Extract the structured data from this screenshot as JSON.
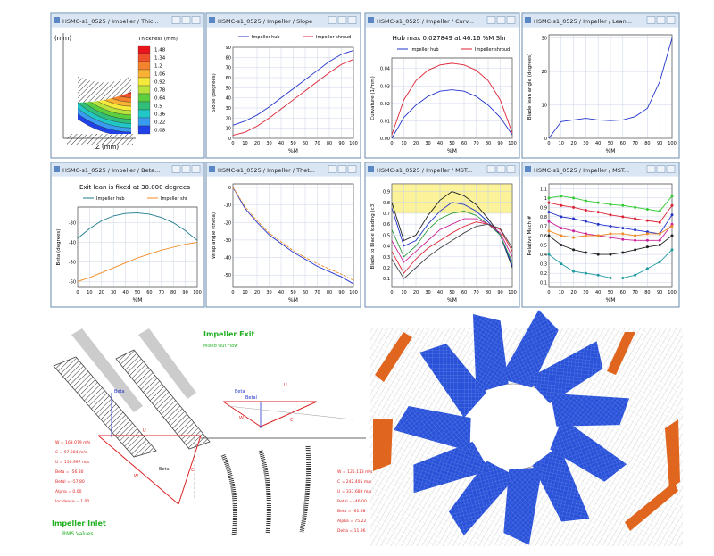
{
  "chart_data": [
    {
      "type": "contour",
      "window_title": "HSMC-s1_0525 / Impeller / Thic...",
      "title": "Thickness  (mm)",
      "y_label": "(mm)",
      "x_label": "Z (mm)",
      "levels": [
        1.48,
        1.34,
        1.2,
        1.06,
        0.92,
        0.78,
        0.64,
        0.5,
        0.36,
        0.22,
        0.08
      ],
      "colors": [
        "#e8141c",
        "#f0502a",
        "#f5822c",
        "#f9b233",
        "#f5e93a",
        "#b9e23c",
        "#5ccf3e",
        "#2fbf7a",
        "#21c6c6",
        "#3a9cf0",
        "#2040e8"
      ]
    },
    {
      "type": "line",
      "window_title": "HSMC-s1_0525 / Impeller / Slope",
      "x_label": "%M",
      "y_label": "Slope (degrees)",
      "x": [
        0,
        10,
        20,
        30,
        40,
        50,
        60,
        70,
        80,
        90,
        100
      ],
      "xlim": [
        0,
        100
      ],
      "xticks": [
        0,
        10,
        20,
        30,
        40,
        50,
        60,
        70,
        80,
        90,
        100
      ],
      "ylim": [
        0,
        90
      ],
      "yticks": [
        0,
        10,
        20,
        30,
        40,
        50,
        60,
        70,
        80,
        90
      ],
      "grid": true,
      "series": [
        {
          "name": "Impeller hub",
          "color": "#2233cc",
          "values": [
            13,
            17,
            23,
            31,
            40,
            49,
            58,
            67,
            76,
            83,
            87
          ]
        },
        {
          "name": "Impeller shroud",
          "color": "#dd2233",
          "values": [
            3,
            6,
            12,
            20,
            29,
            38,
            47,
            56,
            65,
            73,
            78
          ]
        }
      ]
    },
    {
      "type": "line",
      "window_title": "HSMC-s1_0525 / Impeller / Curv...",
      "title": "Hub max 0.027849 at 46.16 %M   Shr",
      "x_label": "%M",
      "y_label": "Curvature (1/mm)",
      "x": [
        0,
        10,
        20,
        30,
        40,
        50,
        60,
        70,
        80,
        90,
        100
      ],
      "xlim": [
        0,
        100
      ],
      "xticks": [
        0,
        10,
        20,
        30,
        40,
        50,
        60,
        70,
        80,
        90,
        100
      ],
      "ylim": [
        0,
        0.046
      ],
      "yticks": [
        {
          "value": 0,
          "label": "0.00"
        },
        0.01,
        0.02,
        0.03,
        0.04
      ],
      "grid": true,
      "series": [
        {
          "name": "Impeller hub",
          "color": "#2233cc",
          "values": [
            0,
            0.012,
            0.019,
            0.024,
            0.027,
            0.0278,
            0.027,
            0.024,
            0.019,
            0.012,
            0.002
          ]
        },
        {
          "name": "Impeller shroud",
          "color": "#dd2233",
          "values": [
            0.002,
            0.022,
            0.033,
            0.039,
            0.042,
            0.043,
            0.042,
            0.039,
            0.033,
            0.022,
            0.003
          ]
        }
      ]
    },
    {
      "type": "line",
      "window_title": "HSMC-s1_0525 / Impeller / Lean...",
      "x_label": "%M",
      "y_label": "Blade lean angle (degrees)",
      "x": [
        0,
        10,
        20,
        30,
        40,
        50,
        60,
        70,
        80,
        90,
        100
      ],
      "xlim": [
        0,
        100
      ],
      "xticks": [
        0,
        10,
        20,
        30,
        40,
        50,
        60,
        70,
        80,
        90,
        100
      ],
      "ylim": [
        0,
        31
      ],
      "yticks": [
        0,
        10,
        20,
        30
      ],
      "grid": true,
      "series": [
        {
          "color": "#2233cc",
          "values": [
            0,
            5,
            5.5,
            6,
            5.5,
            5.3,
            5.5,
            6.5,
            9,
            17,
            30
          ]
        }
      ]
    },
    {
      "type": "line",
      "window_title": "HSMC-s1_0525 / Impeller / Beta...",
      "title": "Exit lean is fixed at 30.000 degrees",
      "x_label": "%M",
      "y_label": "Beta (degrees)",
      "x": [
        0,
        10,
        20,
        30,
        40,
        50,
        60,
        70,
        80,
        90,
        100
      ],
      "xlim": [
        0,
        100
      ],
      "xticks": [
        0,
        10,
        20,
        30,
        40,
        50,
        60,
        70,
        80,
        90,
        100
      ],
      "ylim": [
        -63,
        -22
      ],
      "yticks": [
        -60,
        -50,
        -40,
        -30
      ],
      "grid": true,
      "series": [
        {
          "name": "Impeller hub",
          "color": "#1d7a8c",
          "values": [
            -38,
            -33,
            -29,
            -26.5,
            -25.2,
            -25,
            -25.6,
            -27.3,
            -30,
            -34,
            -39
          ]
        },
        {
          "name": "Impeller shr",
          "color": "#f08a24",
          "values": [
            -60,
            -58,
            -55.5,
            -53,
            -50.5,
            -48,
            -46,
            -44,
            -42.5,
            -41,
            -40
          ]
        }
      ]
    },
    {
      "type": "line",
      "window_title": "HSMC-s1_0525 / Impeller / Thet...",
      "x_label": "%M",
      "y_label": "Wrap angle (theta)",
      "x": [
        0,
        10,
        20,
        30,
        40,
        50,
        60,
        70,
        80,
        90,
        100
      ],
      "xlim": [
        0,
        100
      ],
      "xticks": [
        0,
        10,
        20,
        30,
        40,
        50,
        60,
        70,
        80,
        90,
        100
      ],
      "ylim": [
        -57,
        2
      ],
      "yticks": [
        -50,
        -40,
        -30,
        -20,
        -10,
        0
      ],
      "grid": true,
      "series": [
        {
          "color": "#2233cc",
          "values": [
            0,
            -12,
            -20,
            -27,
            -32,
            -37,
            -41,
            -45,
            -48,
            -51,
            -55
          ]
        },
        {
          "color": "#f08a24",
          "values": [
            0,
            -11,
            -19,
            -26,
            -31,
            -36,
            -40,
            -43.5,
            -46.5,
            -49.5,
            -53
          ]
        }
      ]
    },
    {
      "type": "line",
      "window_title": "HSMC-s1_0525 / Impeller / MST...",
      "x_label": "%M",
      "y_label": "Blade to Blade loading (c3)",
      "x": [
        0,
        10,
        20,
        30,
        40,
        50,
        60,
        70,
        80,
        90,
        100
      ],
      "xlim": [
        0,
        100
      ],
      "xticks": [
        0,
        10,
        20,
        30,
        40,
        50,
        60,
        70,
        80,
        90,
        100
      ],
      "ylim": [
        0.02,
        0.97
      ],
      "yticks": [
        0.1,
        0.2,
        0.3,
        0.4,
        0.5,
        0.6,
        0.7,
        0.8,
        0.9
      ],
      "grid": true,
      "band": [
        0.7,
        0.97
      ],
      "series": [
        {
          "color": "#222222",
          "values": [
            0.8,
            0.45,
            0.5,
            0.68,
            0.82,
            0.9,
            0.86,
            0.78,
            0.65,
            0.5,
            0.2
          ]
        },
        {
          "color": "#2233cc",
          "values": [
            0.75,
            0.4,
            0.45,
            0.6,
            0.72,
            0.8,
            0.78,
            0.72,
            0.62,
            0.5,
            0.22
          ]
        },
        {
          "color": "#2a9a3a",
          "values": [
            0.55,
            0.3,
            0.4,
            0.55,
            0.65,
            0.7,
            0.72,
            0.68,
            0.6,
            0.5,
            0.25
          ]
        },
        {
          "color": "#cc2299",
          "values": [
            0.45,
            0.25,
            0.35,
            0.45,
            0.55,
            0.6,
            0.65,
            0.65,
            0.6,
            0.52,
            0.3
          ]
        },
        {
          "color": "#dd2233",
          "values": [
            0.35,
            0.15,
            0.28,
            0.38,
            0.45,
            0.52,
            0.58,
            0.62,
            0.6,
            0.55,
            0.35
          ]
        },
        {
          "color": "#444444",
          "values": [
            0.28,
            0.1,
            0.2,
            0.3,
            0.38,
            0.45,
            0.52,
            0.58,
            0.6,
            0.56,
            0.38
          ]
        }
      ]
    },
    {
      "type": "line",
      "window_title": "HSMC-s1_0525 / Impeller / MST...",
      "x_label": "%M",
      "y_label": "Relative Mach #",
      "markers": true,
      "x": [
        0,
        10,
        20,
        30,
        40,
        50,
        60,
        70,
        80,
        90,
        100
      ],
      "xlim": [
        0,
        100
      ],
      "xticks": [
        0,
        10,
        20,
        30,
        40,
        50,
        60,
        70,
        80,
        90,
        100
      ],
      "ylim": [
        0.05,
        1.15
      ],
      "yticks": [
        0.1,
        0.2,
        0.3,
        0.4,
        0.5,
        0.6,
        0.7,
        0.8,
        0.9,
        1,
        1.1
      ],
      "grid": true,
      "series": [
        {
          "color": "#33cc33",
          "values": [
            1.0,
            1.02,
            1.0,
            0.97,
            0.95,
            0.93,
            0.92,
            0.9,
            0.88,
            0.86,
            1.02
          ]
        },
        {
          "color": "#dd2233",
          "values": [
            0.95,
            0.92,
            0.9,
            0.87,
            0.85,
            0.82,
            0.8,
            0.78,
            0.76,
            0.74,
            0.92
          ]
        },
        {
          "color": "#2233cc",
          "values": [
            0.85,
            0.8,
            0.78,
            0.75,
            0.72,
            0.7,
            0.68,
            0.66,
            0.64,
            0.62,
            0.82
          ]
        },
        {
          "color": "#cc2299",
          "values": [
            0.75,
            0.68,
            0.65,
            0.62,
            0.6,
            0.58,
            0.56,
            0.55,
            0.55,
            0.55,
            0.72
          ]
        },
        {
          "color": "#f08a24",
          "values": [
            0.65,
            0.6,
            0.58,
            0.6,
            0.6,
            0.62,
            0.62,
            0.6,
            0.62,
            0.62,
            0.7
          ]
        },
        {
          "color": "#222222",
          "values": [
            0.6,
            0.5,
            0.45,
            0.42,
            0.4,
            0.4,
            0.42,
            0.45,
            0.48,
            0.5,
            0.6
          ]
        },
        {
          "color": "#1d9aa0",
          "values": [
            0.4,
            0.3,
            0.22,
            0.2,
            0.18,
            0.15,
            0.15,
            0.18,
            0.25,
            0.32,
            0.45
          ]
        }
      ]
    }
  ],
  "diagram": {
    "exit_title": "Impeller Exit",
    "exit_subtitle": "Mixed Out Flow",
    "inlet_title": "Impeller Inlet",
    "inlet_subtitle": "RMS Values",
    "inlet_labels": [
      "Beta",
      "U",
      "C",
      "Beta",
      "W"
    ],
    "exit_labels": [
      "Beta",
      "Betal",
      "U",
      "W",
      "C"
    ],
    "inlet_values": [
      "W = 163.079 m/s",
      "C = 97.284 m/s",
      "U = 150.997 m/s",
      "Beta = -56.80",
      "Betal = -57.80",
      "Alpha = 0.00",
      "Incidence = 1.00"
    ],
    "exit_values": [
      "W = 125.113 m/s",
      "C = 242.405 m/s",
      "U = 333.689 m/s",
      "Betal = -46.00",
      "Beta = -61.98",
      "Alpha = 75.22",
      "Delta = 11.96"
    ]
  }
}
